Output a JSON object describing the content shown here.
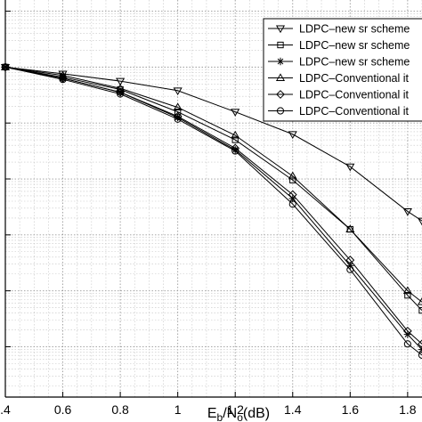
{
  "chart_data": {
    "type": "line",
    "xlabel": {
      "main": "E",
      "sub1": "b",
      "slash": "/N",
      "sub2": "o",
      "unit": "(dB)"
    },
    "ylabel": "",
    "title": "",
    "xlim": [
      0.4,
      1.85
    ],
    "ylim_decades": [
      -6.9,
      0.2
    ],
    "y_scale": "log",
    "grid": true,
    "legend_position": "top-right",
    "x_ticks": [
      0.4,
      0.6,
      0.8,
      1.0,
      1.2,
      1.4,
      1.6,
      1.8
    ],
    "x_tick_labels": [
      ".4",
      "0.6",
      "0.8",
      "1",
      "1.2",
      "1.4",
      "1.6",
      "1.8"
    ],
    "series": [
      {
        "name": "LDPC–new sr scheme",
        "marker": "triangle-down",
        "x": [
          0.4,
          0.6,
          0.8,
          1.0,
          1.2,
          1.4,
          1.6,
          1.8,
          1.85
        ],
        "y": [
          -1.0,
          -1.12,
          -1.25,
          -1.42,
          -1.8,
          -2.2,
          -2.78,
          -3.58,
          -3.75
        ]
      },
      {
        "name": "LDPC–new sr scheme",
        "marker": "square",
        "x": [
          0.4,
          0.6,
          0.8,
          1.0,
          1.2,
          1.4,
          1.6,
          1.8,
          1.85
        ],
        "y": [
          -1.0,
          -1.18,
          -1.4,
          -1.8,
          -2.3,
          -3.02,
          -3.9,
          -5.08,
          -5.35
        ]
      },
      {
        "name": "LDPC–new sr scheme",
        "marker": "star",
        "x": [
          0.4,
          0.6,
          0.8,
          1.0,
          1.2,
          1.4,
          1.6,
          1.8,
          1.85
        ],
        "y": [
          -1.0,
          -1.2,
          -1.45,
          -1.9,
          -2.48,
          -3.35,
          -4.55,
          -5.78,
          -6.05
        ]
      },
      {
        "name": "LDPC–Conventional it",
        "marker": "triangle-up",
        "x": [
          0.4,
          0.6,
          0.8,
          1.0,
          1.2,
          1.4,
          1.6,
          1.8,
          1.85
        ],
        "y": [
          -1.0,
          -1.15,
          -1.38,
          -1.72,
          -2.22,
          -2.95,
          -3.9,
          -5.0,
          -5.2
        ]
      },
      {
        "name": "LDPC–Conventional it",
        "marker": "diamond",
        "x": [
          0.4,
          0.6,
          0.8,
          1.0,
          1.2,
          1.4,
          1.6,
          1.8,
          1.85
        ],
        "y": [
          -1.0,
          -1.2,
          -1.45,
          -1.88,
          -2.45,
          -3.28,
          -4.45,
          -5.72,
          -5.95
        ]
      },
      {
        "name": "LDPC–Conventional it",
        "marker": "circle",
        "x": [
          0.4,
          0.6,
          0.8,
          1.0,
          1.2,
          1.4,
          1.6,
          1.8,
          1.85
        ],
        "y": [
          -1.0,
          -1.22,
          -1.48,
          -1.93,
          -2.5,
          -3.45,
          -4.62,
          -5.95,
          -6.15
        ]
      }
    ]
  }
}
